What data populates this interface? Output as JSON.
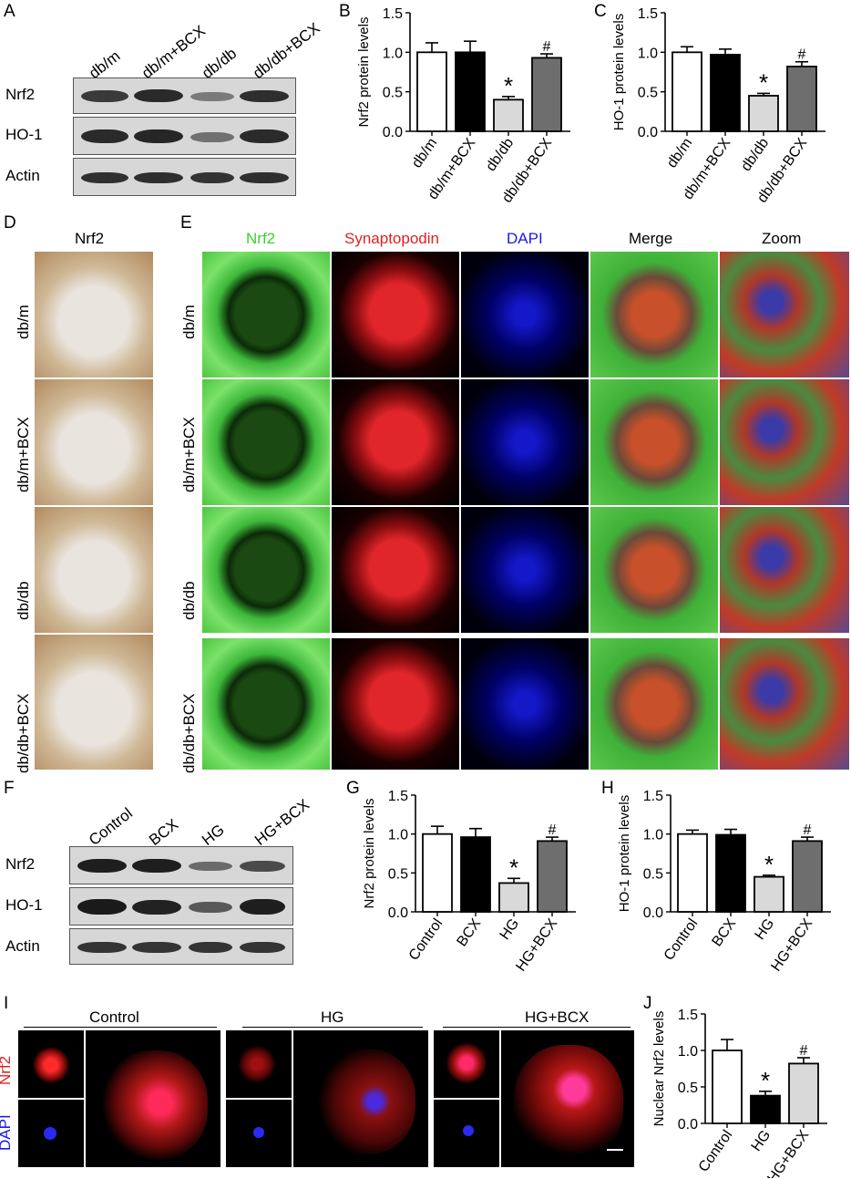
{
  "panels": {
    "A": "A",
    "B": "B",
    "C": "C",
    "D": "D",
    "E": "E",
    "F": "F",
    "G": "G",
    "H": "H",
    "I": "I",
    "J": "J"
  },
  "blotA": {
    "columns": [
      "db/m",
      "db/m+BCX",
      "db/db",
      "db/db+BCX"
    ],
    "rows": [
      "Nrf2",
      "HO-1",
      "Actin"
    ]
  },
  "blotF": {
    "columns": [
      "Control",
      "BCX",
      "HG",
      "HG+BCX"
    ],
    "rows": [
      "Nrf2",
      "HO-1",
      "Actin"
    ]
  },
  "panelD": {
    "header": "Nrf2",
    "rows": [
      "db/m",
      "db/m+BCX",
      "db/db",
      "db/db+BCX"
    ]
  },
  "panelE": {
    "columns": [
      "Nrf2",
      "Synaptopodin",
      "DAPI",
      "Merge",
      "Zoom"
    ],
    "column_colors": [
      "#3bd12c",
      "#e02020",
      "#1a1ae0",
      "#000000",
      "#000000"
    ],
    "rows": [
      "db/m",
      "db/m+BCX",
      "db/db",
      "db/db+BCX"
    ]
  },
  "panelI": {
    "groups": [
      "Control",
      "HG",
      "HG+BCX"
    ],
    "side_labels": [
      "Nrf2",
      "DAPI"
    ],
    "side_colors": [
      "#e02020",
      "#1a1ae0"
    ]
  },
  "chart_data": [
    {
      "id": "B",
      "type": "bar",
      "categories": [
        "db/m",
        "db/m+BCX",
        "db/db",
        "db/db+BCX"
      ],
      "values": [
        1.0,
        1.0,
        0.4,
        0.93
      ],
      "errors": [
        0.12,
        0.14,
        0.04,
        0.05
      ],
      "marks": [
        "",
        "",
        "*",
        "#"
      ],
      "colors": [
        "#ffffff",
        "#000000",
        "#d9d9d9",
        "#6e6e6e"
      ],
      "ylabel": "Nrf2 protein levels",
      "ylim": [
        0,
        1.5
      ],
      "yticks": [
        "0.0",
        "0.5",
        "1.0",
        "1.5"
      ]
    },
    {
      "id": "C",
      "type": "bar",
      "categories": [
        "db/m",
        "db/m+BCX",
        "db/db",
        "db/db+BCX"
      ],
      "values": [
        1.0,
        0.97,
        0.45,
        0.82
      ],
      "errors": [
        0.07,
        0.07,
        0.03,
        0.06
      ],
      "marks": [
        "",
        "",
        "*",
        "#"
      ],
      "colors": [
        "#ffffff",
        "#000000",
        "#d9d9d9",
        "#6e6e6e"
      ],
      "ylabel": "HO-1 protein levels",
      "ylim": [
        0,
        1.5
      ],
      "yticks": [
        "0.0",
        "0.5",
        "1.0",
        "1.5"
      ]
    },
    {
      "id": "G",
      "type": "bar",
      "categories": [
        "Control",
        "BCX",
        "HG",
        "HG+BCX"
      ],
      "values": [
        1.0,
        0.96,
        0.37,
        0.91
      ],
      "errors": [
        0.1,
        0.11,
        0.06,
        0.05
      ],
      "marks": [
        "",
        "",
        "*",
        "#"
      ],
      "colors": [
        "#ffffff",
        "#000000",
        "#d9d9d9",
        "#6e6e6e"
      ],
      "ylabel": "Nrf2 protein levels",
      "ylim": [
        0,
        1.5
      ],
      "yticks": [
        "0.0",
        "0.5",
        "1.0",
        "1.5"
      ]
    },
    {
      "id": "H",
      "type": "bar",
      "categories": [
        "Control",
        "BCX",
        "HG",
        "HG+BCX"
      ],
      "values": [
        1.0,
        0.99,
        0.45,
        0.91
      ],
      "errors": [
        0.05,
        0.07,
        0.02,
        0.05
      ],
      "marks": [
        "",
        "",
        "*",
        "#"
      ],
      "colors": [
        "#ffffff",
        "#000000",
        "#d9d9d9",
        "#6e6e6e"
      ],
      "ylabel": "HO-1 protein levels",
      "ylim": [
        0,
        1.5
      ],
      "yticks": [
        "0.0",
        "0.5",
        "1.0",
        "1.5"
      ]
    },
    {
      "id": "J",
      "type": "bar",
      "categories": [
        "Control",
        "HG",
        "HG+BCX"
      ],
      "values": [
        1.0,
        0.38,
        0.82
      ],
      "errors": [
        0.15,
        0.06,
        0.08
      ],
      "marks": [
        "",
        "*",
        "#"
      ],
      "colors": [
        "#ffffff",
        "#000000",
        "#d9d9d9"
      ],
      "ylabel": "Nuclear Nrf2 levels",
      "ylim": [
        0,
        1.5
      ],
      "yticks": [
        "0.0",
        "0.5",
        "1.0",
        "1.5"
      ]
    }
  ]
}
